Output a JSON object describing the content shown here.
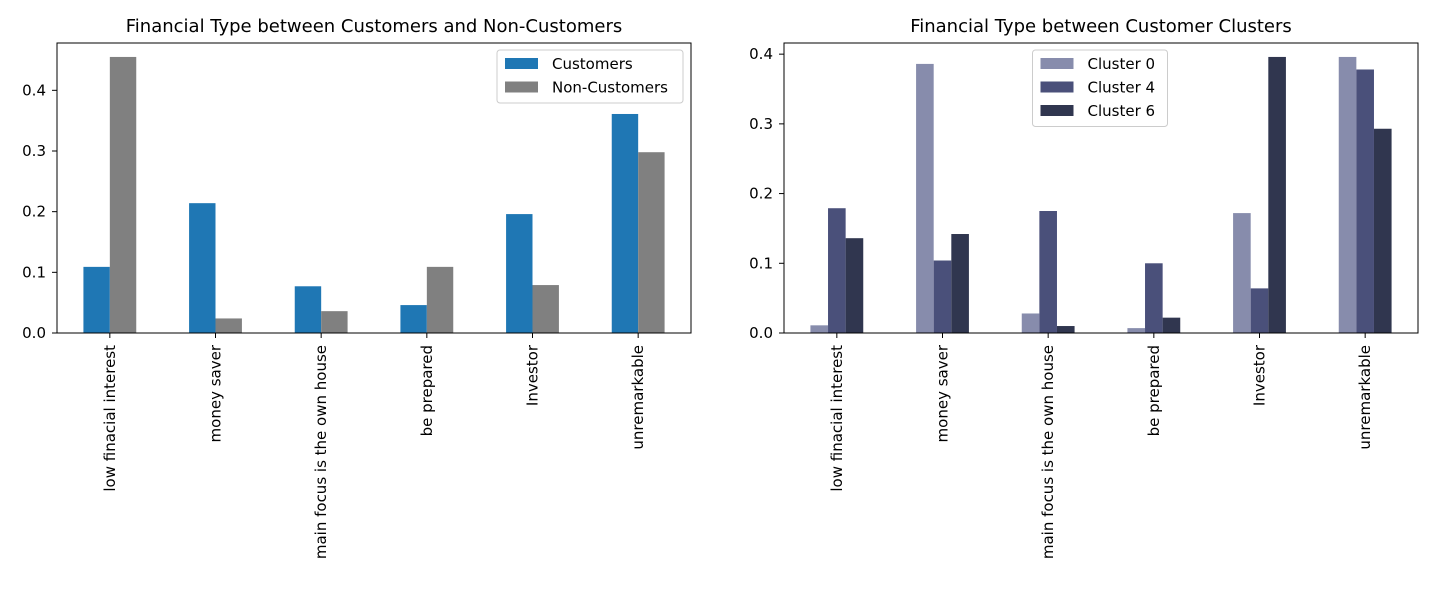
{
  "chart_data": [
    {
      "type": "bar",
      "title": "Financial Type between Customers and Non-Customers",
      "xlabel": "",
      "ylabel": "",
      "categories": [
        "low finacial interest",
        "money saver",
        "main focus is the own house",
        "be prepared",
        "Investor",
        "unremarkable"
      ],
      "series": [
        {
          "name": "Customers",
          "color": "#1f77b4",
          "values": [
            0.109,
            0.214,
            0.077,
            0.046,
            0.196,
            0.361
          ]
        },
        {
          "name": "Non-Customers",
          "color": "#808080",
          "values": [
            0.455,
            0.024,
            0.036,
            0.109,
            0.079,
            0.298
          ]
        }
      ],
      "yticks": [
        0.0,
        0.1,
        0.2,
        0.3,
        0.4
      ],
      "ylim": [
        0,
        0.478
      ],
      "grid": false,
      "legend_position": "top-right"
    },
    {
      "type": "bar",
      "title": "Financial Type between Customer Clusters",
      "xlabel": "",
      "ylabel": "",
      "categories": [
        "low finacial interest",
        "money saver",
        "main focus is the own house",
        "be prepared",
        "Investor",
        "unremarkable"
      ],
      "series": [
        {
          "name": "Cluster 0",
          "color": "#878cac",
          "values": [
            0.011,
            0.386,
            0.028,
            0.007,
            0.172,
            0.396
          ]
        },
        {
          "name": "Cluster 4",
          "color": "#4a507a",
          "values": [
            0.179,
            0.104,
            0.175,
            0.1,
            0.064,
            0.378
          ]
        },
        {
          "name": "Cluster 6",
          "color": "#30364f",
          "values": [
            0.136,
            0.142,
            0.01,
            0.022,
            0.396,
            0.293
          ]
        }
      ],
      "yticks": [
        0.0,
        0.1,
        0.2,
        0.3,
        0.4
      ],
      "ylim": [
        0,
        0.416
      ],
      "grid": false,
      "legend_position": "top-center"
    }
  ]
}
